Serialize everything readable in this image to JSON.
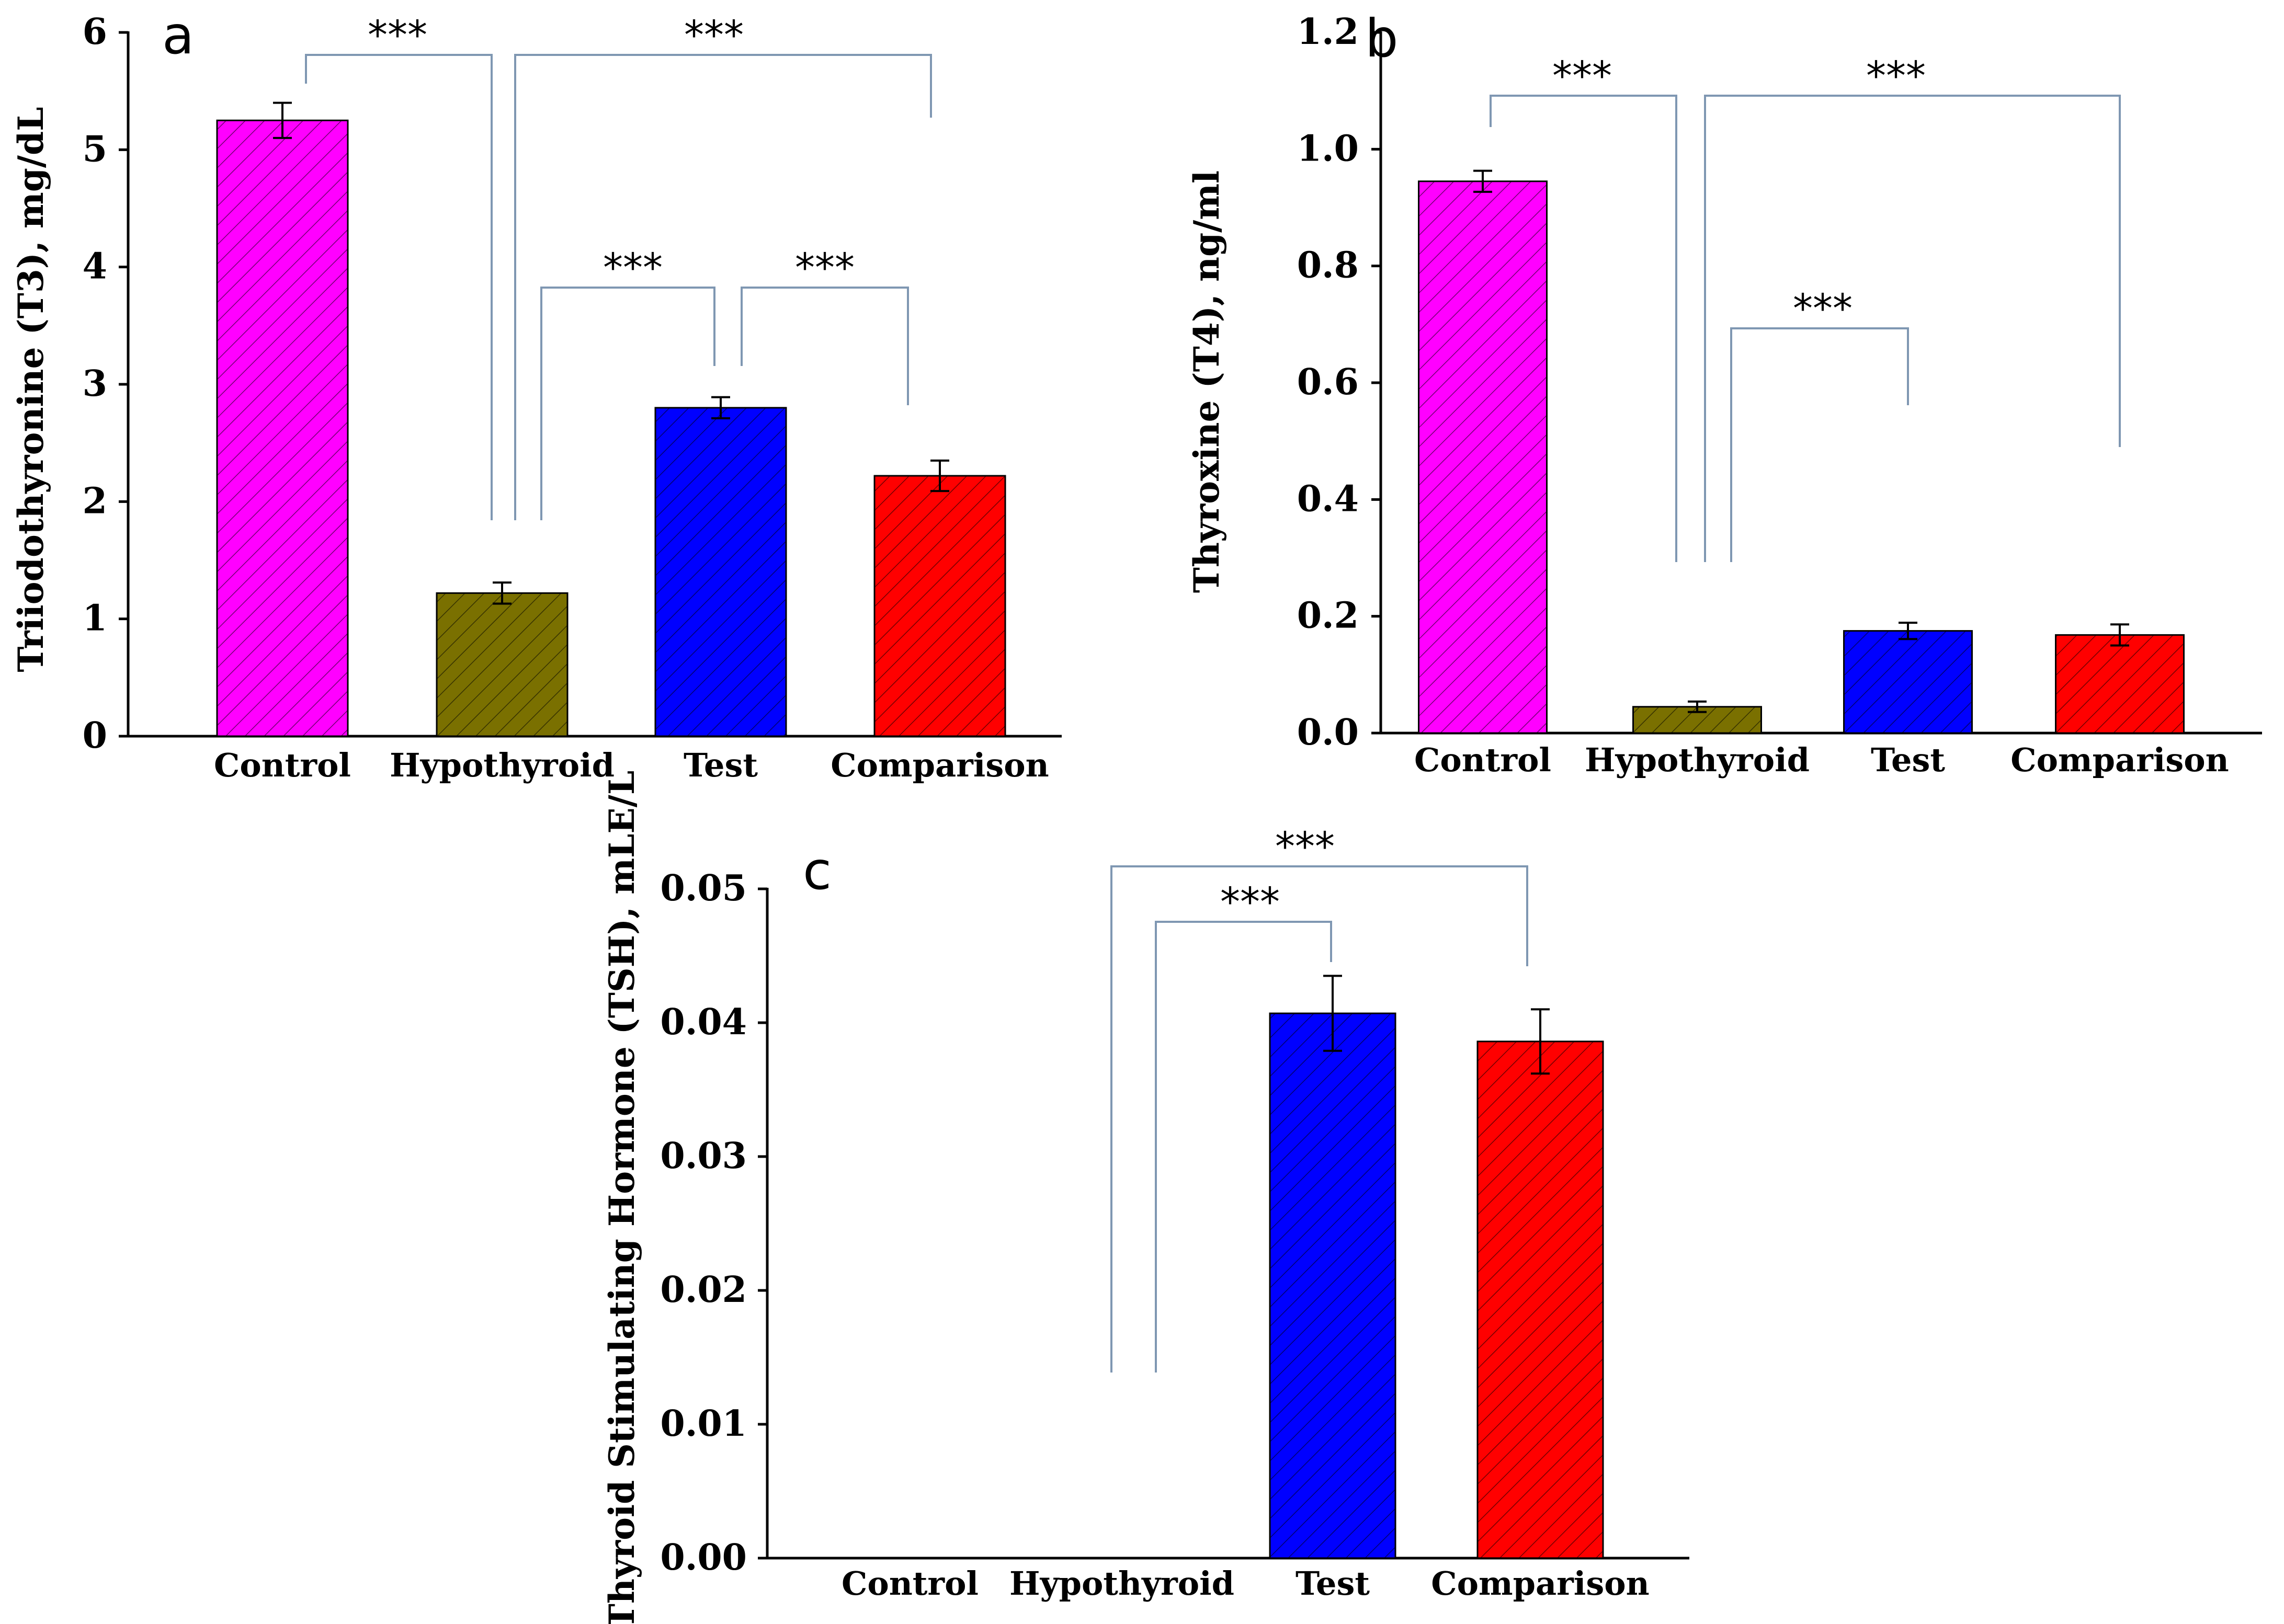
{
  "colors": {
    "Control": "#ff00ff",
    "Hypothyroid": "#7a7000",
    "Test": "#0000ff",
    "Comparison": "#ff0000",
    "bracket": "#7f97b2"
  },
  "chart_data": [
    {
      "type": "bar",
      "panel": "a",
      "categories": [
        "Control",
        "Hypothyroid",
        "Test",
        "Comparison"
      ],
      "values": [
        5.25,
        1.22,
        2.8,
        2.22
      ],
      "errors": [
        0.15,
        0.09,
        0.09,
        0.13
      ],
      "ylabel": "Triiodothyronine (T3), mg/dL",
      "ylim": [
        0,
        6
      ],
      "yticks": [
        0,
        1,
        2,
        3,
        4,
        5,
        6
      ],
      "significance": [
        {
          "from": "Control",
          "to": "Hypothyroid",
          "label": "***"
        },
        {
          "from": "Hypothyroid",
          "to": "Comparison",
          "label": "***"
        },
        {
          "from": "Hypothyroid",
          "to": "Test",
          "label": "***"
        },
        {
          "from": "Test",
          "to": "Comparison",
          "label": "***"
        }
      ]
    },
    {
      "type": "bar",
      "panel": "b",
      "categories": [
        "Control",
        "Hypothyroid",
        "Test",
        "Comparison"
      ],
      "values": [
        0.945,
        0.045,
        0.175,
        0.168
      ],
      "errors": [
        0.018,
        0.009,
        0.014,
        0.018
      ],
      "ylabel": "Thyroxine (T4), ng/ml",
      "ylim": [
        0,
        1.2
      ],
      "yticks": [
        "0.0",
        "0.2",
        "0.4",
        "0.6",
        "0.8",
        "1.0",
        "1.2"
      ],
      "significance": [
        {
          "from": "Control",
          "to": "Hypothyroid",
          "label": "***"
        },
        {
          "from": "Hypothyroid",
          "to": "Comparison",
          "label": "***"
        },
        {
          "from": "Hypothyroid",
          "to": "Test",
          "label": "***"
        }
      ]
    },
    {
      "type": "bar",
      "panel": "c",
      "categories": [
        "Control",
        "Hypothyroid",
        "Test",
        "Comparison"
      ],
      "values": [
        0,
        0,
        0.0407,
        0.0386
      ],
      "errors": [
        0,
        0,
        0.0028,
        0.0024
      ],
      "ylabel": "Thyroid Stimulating Hormone (TSH), mLE/L",
      "ylim": [
        0,
        0.05
      ],
      "yticks": [
        "0.00",
        "0.01",
        "0.02",
        "0.03",
        "0.04",
        "0.05"
      ],
      "significance": [
        {
          "from": "Hypothyroid",
          "to": "Comparison",
          "label": "***"
        },
        {
          "from": "Hypothyroid",
          "to": "Test",
          "label": "***"
        }
      ]
    }
  ]
}
